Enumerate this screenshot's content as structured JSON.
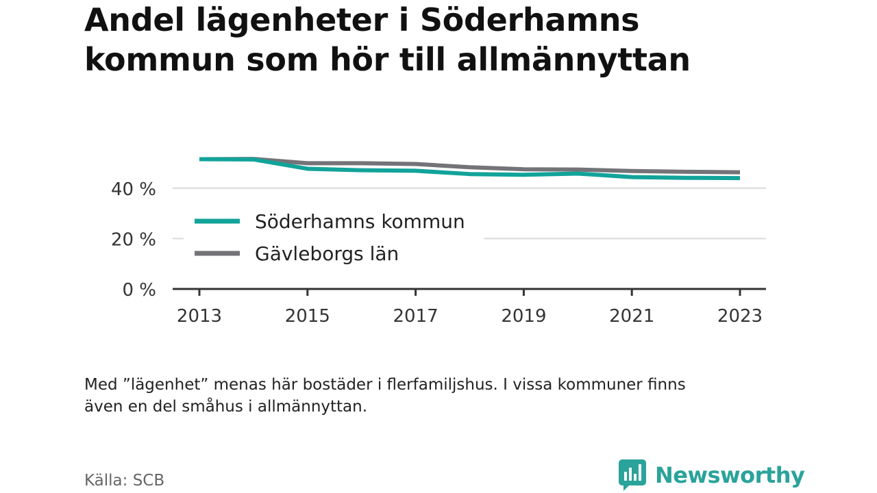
{
  "colors": {
    "soderhamn": "#12a39a",
    "gavleborg": "#737378",
    "axis": "#333333",
    "grid": "#d9d9d9",
    "brand": "#2aa39a"
  },
  "header": {
    "title_line1": "Andel lägenheter i Söderhamns",
    "title_line2": "kommun som hör till allmännyttan"
  },
  "footer": {
    "note_line1": "Med ”lägenhet” menas här bostäder i flerfamiljshus. I vissa kommuner finns",
    "note_line2": "även en del småhus i allmännyttan.",
    "source": "Källa: SCB",
    "brand": "Newsworthy",
    "brand_icon": "newsworthy-logo-icon"
  },
  "chart_data": {
    "type": "line",
    "x": [
      2013,
      2014,
      2015,
      2016,
      2017,
      2018,
      2019,
      2020,
      2021,
      2022,
      2023
    ],
    "xlim": [
      2013,
      2023
    ],
    "x_ticks": [
      2013,
      2015,
      2017,
      2019,
      2021,
      2023
    ],
    "x_tick_labels": [
      "2013",
      "2015",
      "2017",
      "2019",
      "2021",
      "2023"
    ],
    "ylim": [
      0,
      50
    ],
    "y_ticks": [
      0,
      20,
      40
    ],
    "y_tick_labels": [
      "0 %",
      "20 %",
      "40 %"
    ],
    "grid": true,
    "legend_position": "bottom-left",
    "series": [
      {
        "name": "Söderhamns kommun",
        "color": "#12a39a",
        "values": [
          51.5,
          51.4,
          47.7,
          47.1,
          46.9,
          45.6,
          45.3,
          45.8,
          44.4,
          44.1,
          44.0
        ]
      },
      {
        "name": "Gävleborgs län",
        "color": "#737378",
        "values": [
          51.5,
          51.6,
          49.9,
          49.9,
          49.6,
          48.3,
          47.5,
          47.4,
          46.8,
          46.5,
          46.3
        ]
      }
    ]
  }
}
